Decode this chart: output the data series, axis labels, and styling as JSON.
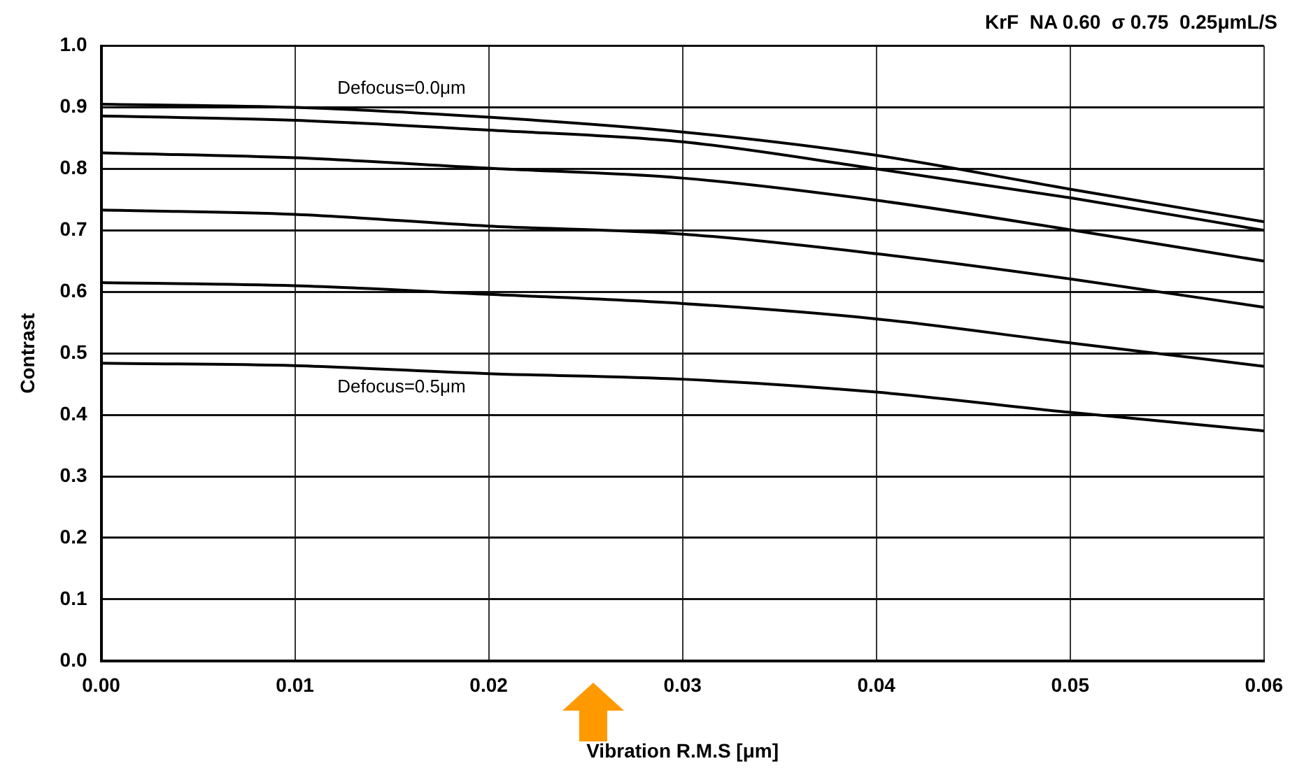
{
  "chart_data": {
    "type": "line",
    "title": "KrF  NA 0.60  σ 0.75  0.25μmL/S",
    "xlabel": "Vibration R.M.S [μm]",
    "ylabel": "Contrast",
    "x": [
      0,
      0.01,
      0.02,
      0.03,
      0.04,
      0.05,
      0.06
    ],
    "series": [
      {
        "color": "#000000",
        "values": [
          0.905,
          0.9,
          0.884,
          0.86,
          0.822,
          0.767,
          0.714
        ]
      },
      {
        "color": "#000000",
        "values": [
          0.886,
          0.879,
          0.863,
          0.844,
          0.8,
          0.753,
          0.7
        ]
      },
      {
        "color": "#000000",
        "values": [
          0.826,
          0.818,
          0.801,
          0.785,
          0.749,
          0.701,
          0.65
        ]
      },
      {
        "color": "#000000",
        "values": [
          0.733,
          0.726,
          0.707,
          0.694,
          0.662,
          0.621,
          0.575
        ]
      },
      {
        "color": "#000000",
        "values": [
          0.615,
          0.61,
          0.596,
          0.581,
          0.556,
          0.517,
          0.479
        ]
      },
      {
        "color": "#000000",
        "values": [
          0.484,
          0.48,
          0.467,
          0.458,
          0.437,
          0.404,
          0.374
        ]
      }
    ],
    "annotations": [
      "Defocus=0.0μm",
      "Defocus=0.5μm"
    ],
    "xlim": [
      0,
      0.06
    ],
    "xticks": [
      {
        "value": 0,
        "label": "0.00"
      },
      0.01,
      0.02,
      0.03,
      0.04,
      0.05,
      0.06
    ],
    "ylim": [
      0,
      1
    ],
    "yticks": [
      {
        "value": 0,
        "label": "0.0"
      },
      0.1,
      0.2,
      0.3,
      0.4,
      0.5,
      0.6,
      0.7,
      0.8,
      0.9,
      {
        "value": 1,
        "label": "1.0"
      }
    ],
    "grid": true,
    "legend": false,
    "marker": "none",
    "line_style": "solid"
  }
}
